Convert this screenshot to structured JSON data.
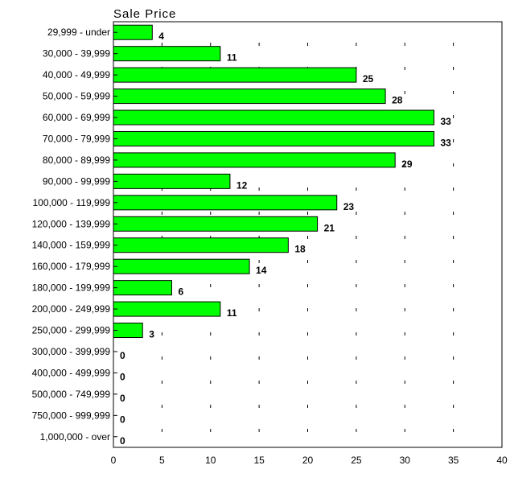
{
  "chart_data": {
    "type": "bar",
    "orientation": "horizontal",
    "title": "Sale Price",
    "categories": [
      "29,999 - under",
      "30,000 - 39,999",
      "40,000 - 49,999",
      "50,000 - 59,999",
      "60,000 - 69,999",
      "70,000 - 79,999",
      "80,000 - 89,999",
      "90,000 - 99,999",
      "100,000 - 119,999",
      "120,000 - 139,999",
      "140,000 - 159,999",
      "160,000 - 179,999",
      "180,000 - 199,999",
      "200,000 - 249,999",
      "250,000 - 299,999",
      "300,000 - 399,999",
      "400,000 - 499,999",
      "500,000 - 749,999",
      "750,000 - 999,999",
      "1,000,000 - over"
    ],
    "values": [
      4,
      11,
      25,
      28,
      33,
      33,
      29,
      12,
      23,
      21,
      18,
      14,
      6,
      11,
      3,
      0,
      0,
      0,
      0,
      0
    ],
    "xlim": [
      0,
      40
    ],
    "xticks": [
      0,
      5,
      10,
      15,
      20,
      25,
      30,
      35,
      40
    ],
    "bar_color": "#00ff00",
    "bar_edge_color": "#000000",
    "grid": "dashed vertical",
    "xlabel": "",
    "ylabel": ""
  }
}
